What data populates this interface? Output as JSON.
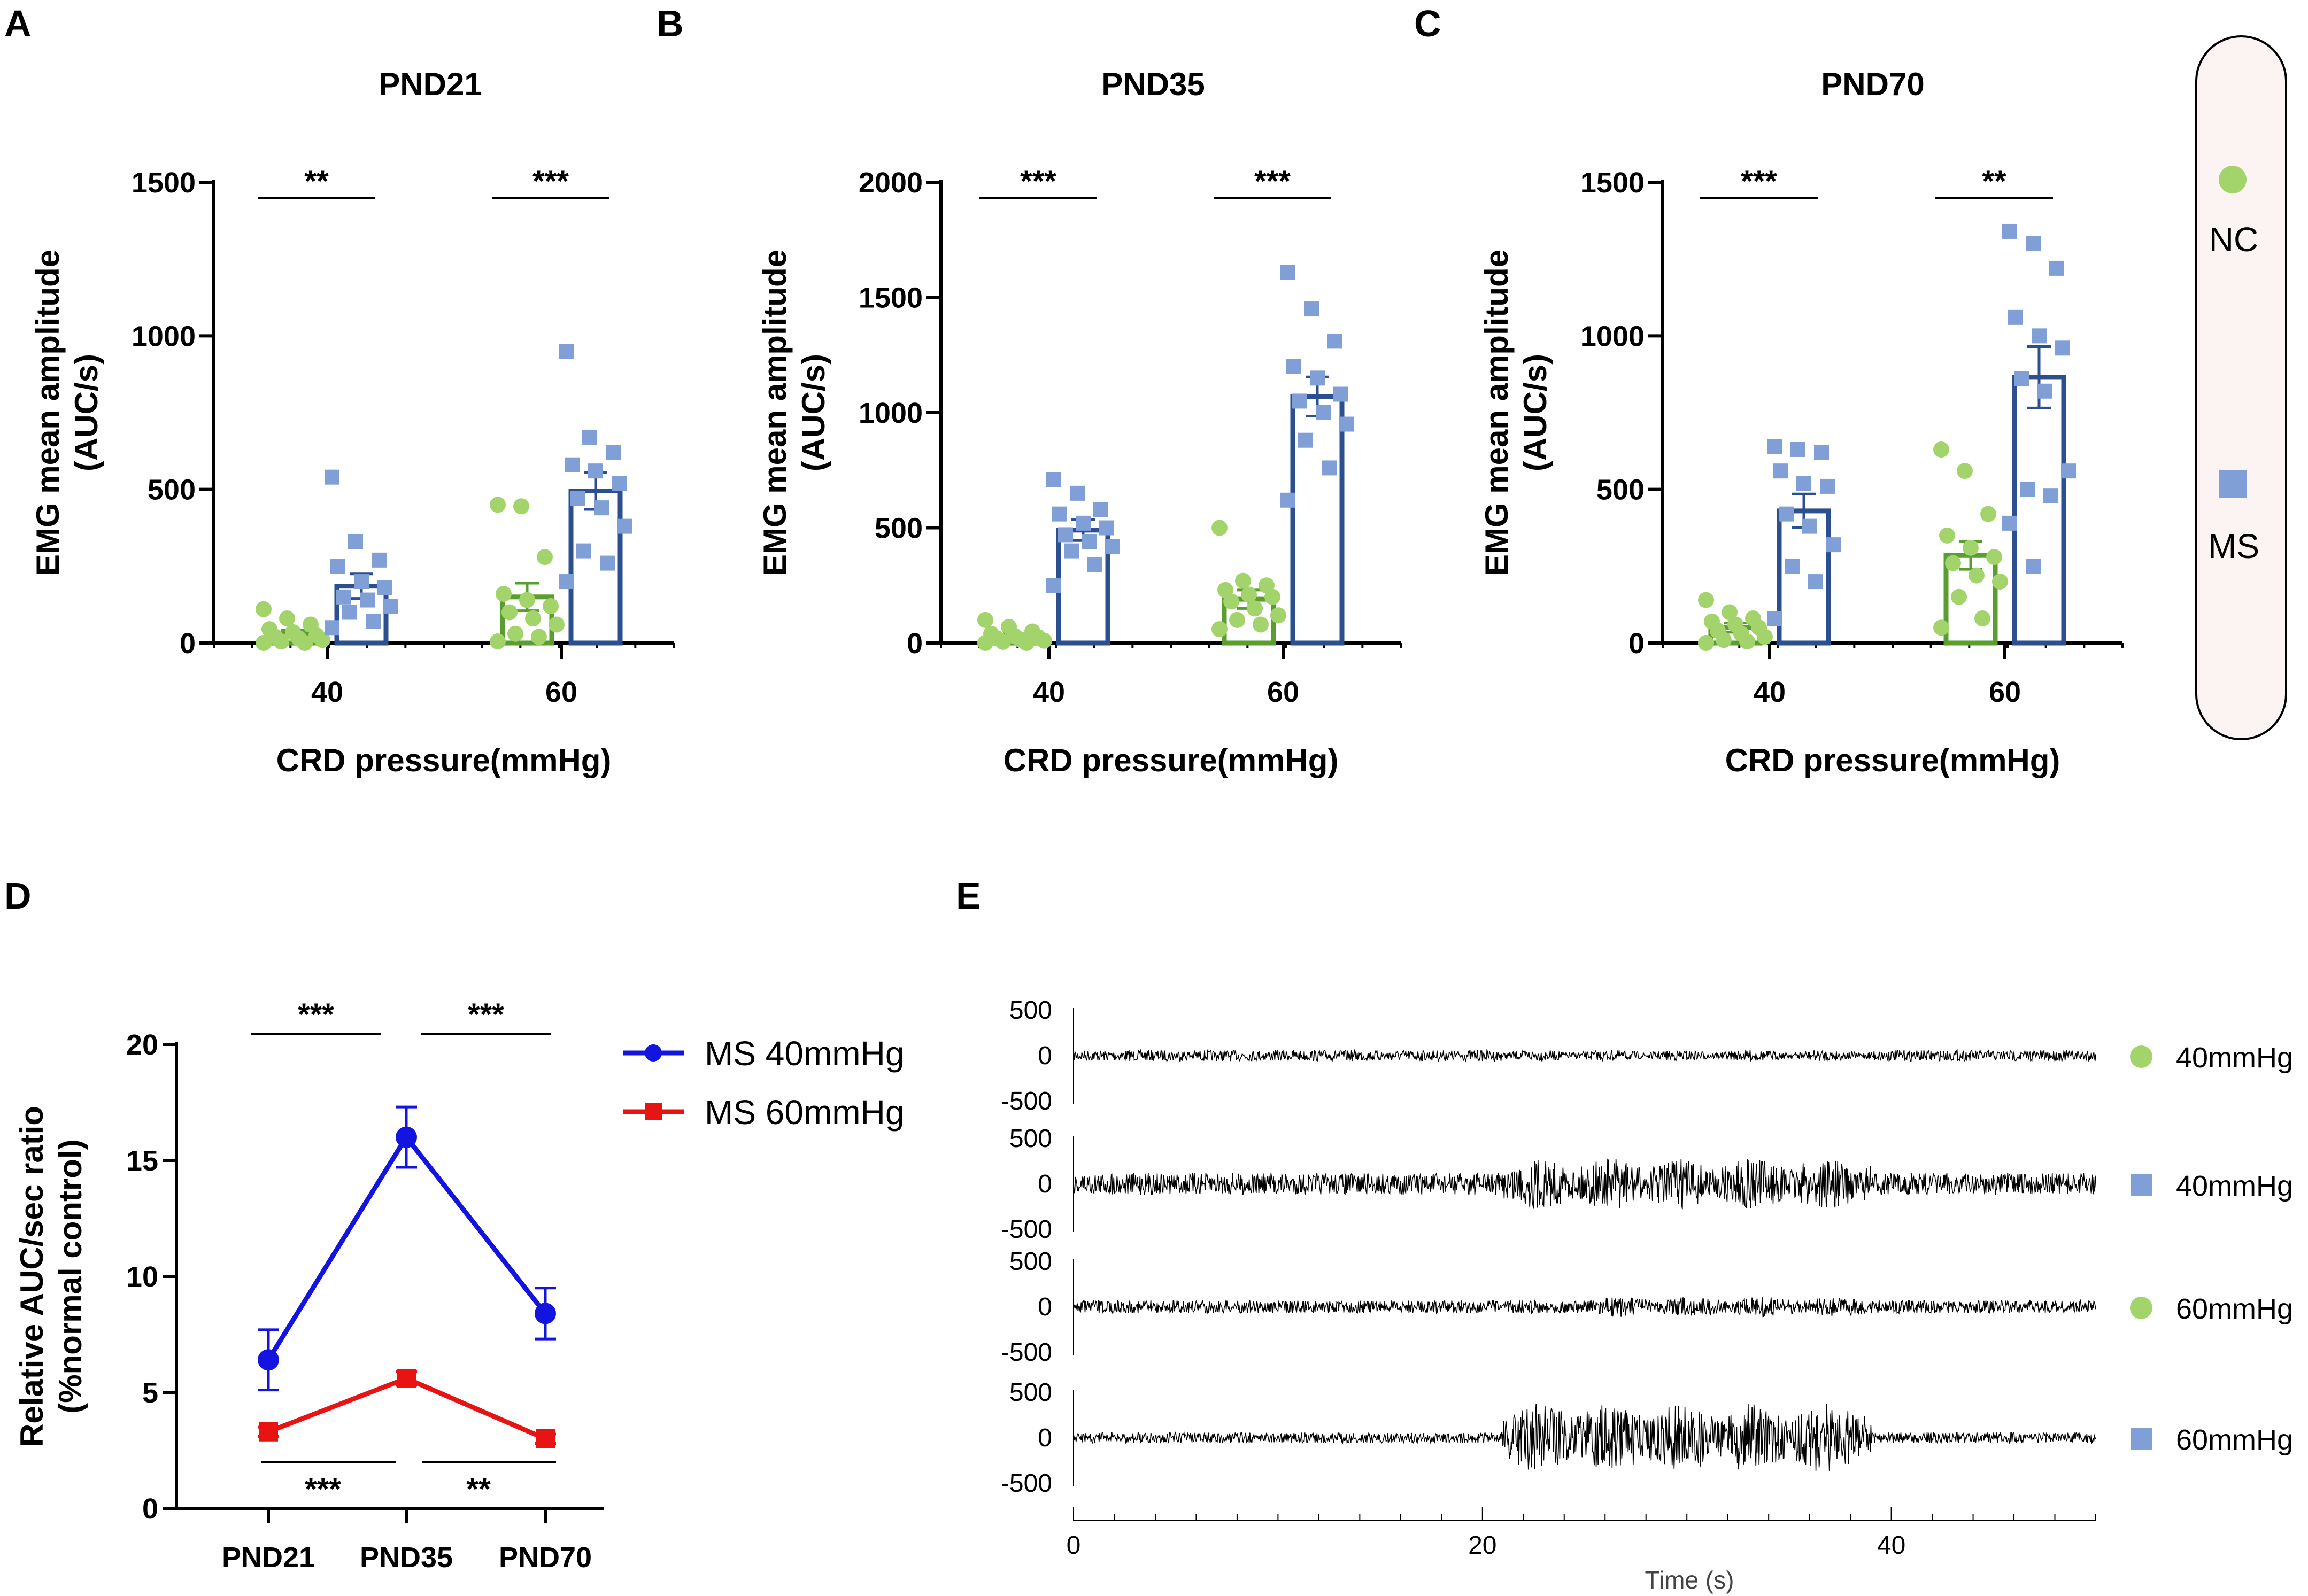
{
  "colors": {
    "nc_fill": "#a3d46b",
    "nc_bar": "#5a9e2f",
    "ms_fill": "#7f9fd6",
    "ms_bar": "#2b4f8f",
    "line_40": "#1414e0",
    "line_60": "#e81414",
    "legend_box_fill": "#fbf4f2"
  },
  "panels": {
    "A": "A",
    "B": "B",
    "C": "C",
    "D": "D",
    "E": "E"
  },
  "legend_top": {
    "nc_label": "NC",
    "ms_label": "MS",
    "nc_icon": "circle-marker",
    "ms_icon": "square-marker"
  },
  "legend_d": {
    "ms40_label": "MS 40mmHg",
    "ms60_label": "MS 60mmHg"
  },
  "legend_e": [
    "40mmHg",
    "40mmHg",
    "60mmHg",
    "60mmHg"
  ],
  "chart_data": [
    {
      "id": "A",
      "type": "bar",
      "title": "PND21",
      "xlabel": "CRD pressure(mmHg)",
      "ylabel": [
        "EMG mean amplitude",
        "(AUC/s)"
      ],
      "ylim": [
        0,
        1500
      ],
      "yticks": [
        0,
        500,
        1000,
        1500
      ],
      "categories": [
        "40",
        "60"
      ],
      "series": [
        {
          "name": "NC",
          "values": [
            30,
            150
          ],
          "sem": [
            12,
            45
          ],
          "points": [
            [
              110,
              80,
              60,
              45,
              35,
              25,
              20,
              15,
              10,
              5,
              0,
              0
            ],
            [
              450,
              445,
              280,
              160,
              140,
              120,
              100,
              80,
              60,
              30,
              20,
              5
            ]
          ]
        },
        {
          "name": "MS",
          "values": [
            185,
            495
          ],
          "sem": [
            40,
            60
          ],
          "points": [
            [
              540,
              330,
              270,
              250,
              200,
              180,
              150,
              140,
              120,
              100,
              70,
              50
            ],
            [
              950,
              670,
              620,
              580,
              560,
              520,
              470,
              440,
              380,
              300,
              260,
              200
            ]
          ]
        }
      ],
      "significance": [
        "**",
        "***"
      ]
    },
    {
      "id": "B",
      "type": "bar",
      "title": "PND35",
      "xlabel": "CRD pressure(mmHg)",
      "ylabel": [
        "EMG mean amplitude",
        "(AUC/s)"
      ],
      "ylim": [
        0,
        2000
      ],
      "yticks": [
        0,
        500,
        1000,
        1500,
        2000
      ],
      "categories": [
        "40",
        "60"
      ],
      "series": [
        {
          "name": "NC",
          "values": [
            30,
            190
          ],
          "sem": [
            10,
            40
          ],
          "points": [
            [
              100,
              70,
              50,
              40,
              30,
              25,
              20,
              15,
              10,
              5,
              0,
              0
            ],
            [
              500,
              270,
              250,
              230,
              210,
              200,
              180,
              150,
              120,
              100,
              80,
              60
            ]
          ]
        },
        {
          "name": "MS",
          "values": [
            490,
            1070
          ],
          "sem": [
            45,
            85
          ],
          "points": [
            [
              710,
              650,
              580,
              560,
              520,
              500,
              470,
              440,
              420,
              400,
              340,
              250
            ],
            [
              1610,
              1450,
              1310,
              1200,
              1150,
              1080,
              1050,
              1000,
              950,
              880,
              760,
              620
            ]
          ]
        }
      ],
      "significance": [
        "***",
        "***"
      ]
    },
    {
      "id": "C",
      "type": "bar",
      "title": "PND70",
      "xlabel": "CRD pressure(mmHg)",
      "ylabel": [
        "EMG mean amplitude",
        "(AUC/s)"
      ],
      "ylim": [
        0,
        1500
      ],
      "yticks": [
        0,
        500,
        1000,
        1500
      ],
      "categories": [
        "40",
        "60"
      ],
      "series": [
        {
          "name": "NC",
          "values": [
            50,
            285
          ],
          "sem": [
            15,
            45
          ],
          "points": [
            [
              140,
              100,
              80,
              70,
              60,
              50,
              40,
              30,
              20,
              10,
              5,
              0
            ],
            [
              630,
              560,
              420,
              350,
              310,
              280,
              260,
              220,
              200,
              150,
              80,
              50
            ]
          ]
        },
        {
          "name": "MS",
          "values": [
            430,
            865
          ],
          "sem": [
            55,
            100
          ],
          "points": [
            [
              640,
              630,
              620,
              560,
              520,
              510,
              420,
              380,
              320,
              250,
              200,
              80
            ],
            [
              1340,
              1300,
              1220,
              1060,
              1000,
              960,
              860,
              820,
              560,
              500,
              480,
              390,
              250
            ]
          ]
        }
      ],
      "significance": [
        "***",
        "**"
      ]
    },
    {
      "id": "D",
      "type": "line",
      "xlabel": "",
      "ylabel": [
        "Relative AUC/sec ratio",
        "(%normal control)"
      ],
      "ylim": [
        0,
        20
      ],
      "yticks": [
        0,
        5,
        10,
        15,
        20
      ],
      "categories": [
        "PND21",
        "PND35",
        "PND70"
      ],
      "series": [
        {
          "name": "MS 40mmHg",
          "values": [
            6.4,
            16.0,
            8.4
          ],
          "sem": [
            1.3,
            1.3,
            1.1
          ]
        },
        {
          "name": "MS 60mmHg",
          "values": [
            3.3,
            5.6,
            3.0
          ],
          "sem": [
            0.2,
            0.3,
            0.2
          ]
        }
      ],
      "significance_top": [
        "***",
        "***"
      ],
      "significance_bottom": [
        "***",
        "**"
      ]
    },
    {
      "id": "E",
      "type": "line",
      "xlabel": "Time (s)",
      "xlim": [
        0,
        50
      ],
      "xticks": [
        0,
        20,
        40
      ],
      "yticks": [
        "500",
        "0",
        "-500"
      ],
      "traces": [
        {
          "name": "NC 40mmHg",
          "baseline_amp": 60,
          "burst": [
            21,
            39
          ],
          "burst_amp": 60
        },
        {
          "name": "MS 40mmHg",
          "baseline_amp": 120,
          "burst": [
            21,
            39
          ],
          "burst_amp": 280
        },
        {
          "name": "NC 60mmHg",
          "baseline_amp": 70,
          "burst": [
            25,
            39
          ],
          "burst_amp": 110
        },
        {
          "name": "MS 60mmHg",
          "baseline_amp": 60,
          "burst": [
            21,
            39
          ],
          "burst_amp": 380
        }
      ]
    }
  ]
}
